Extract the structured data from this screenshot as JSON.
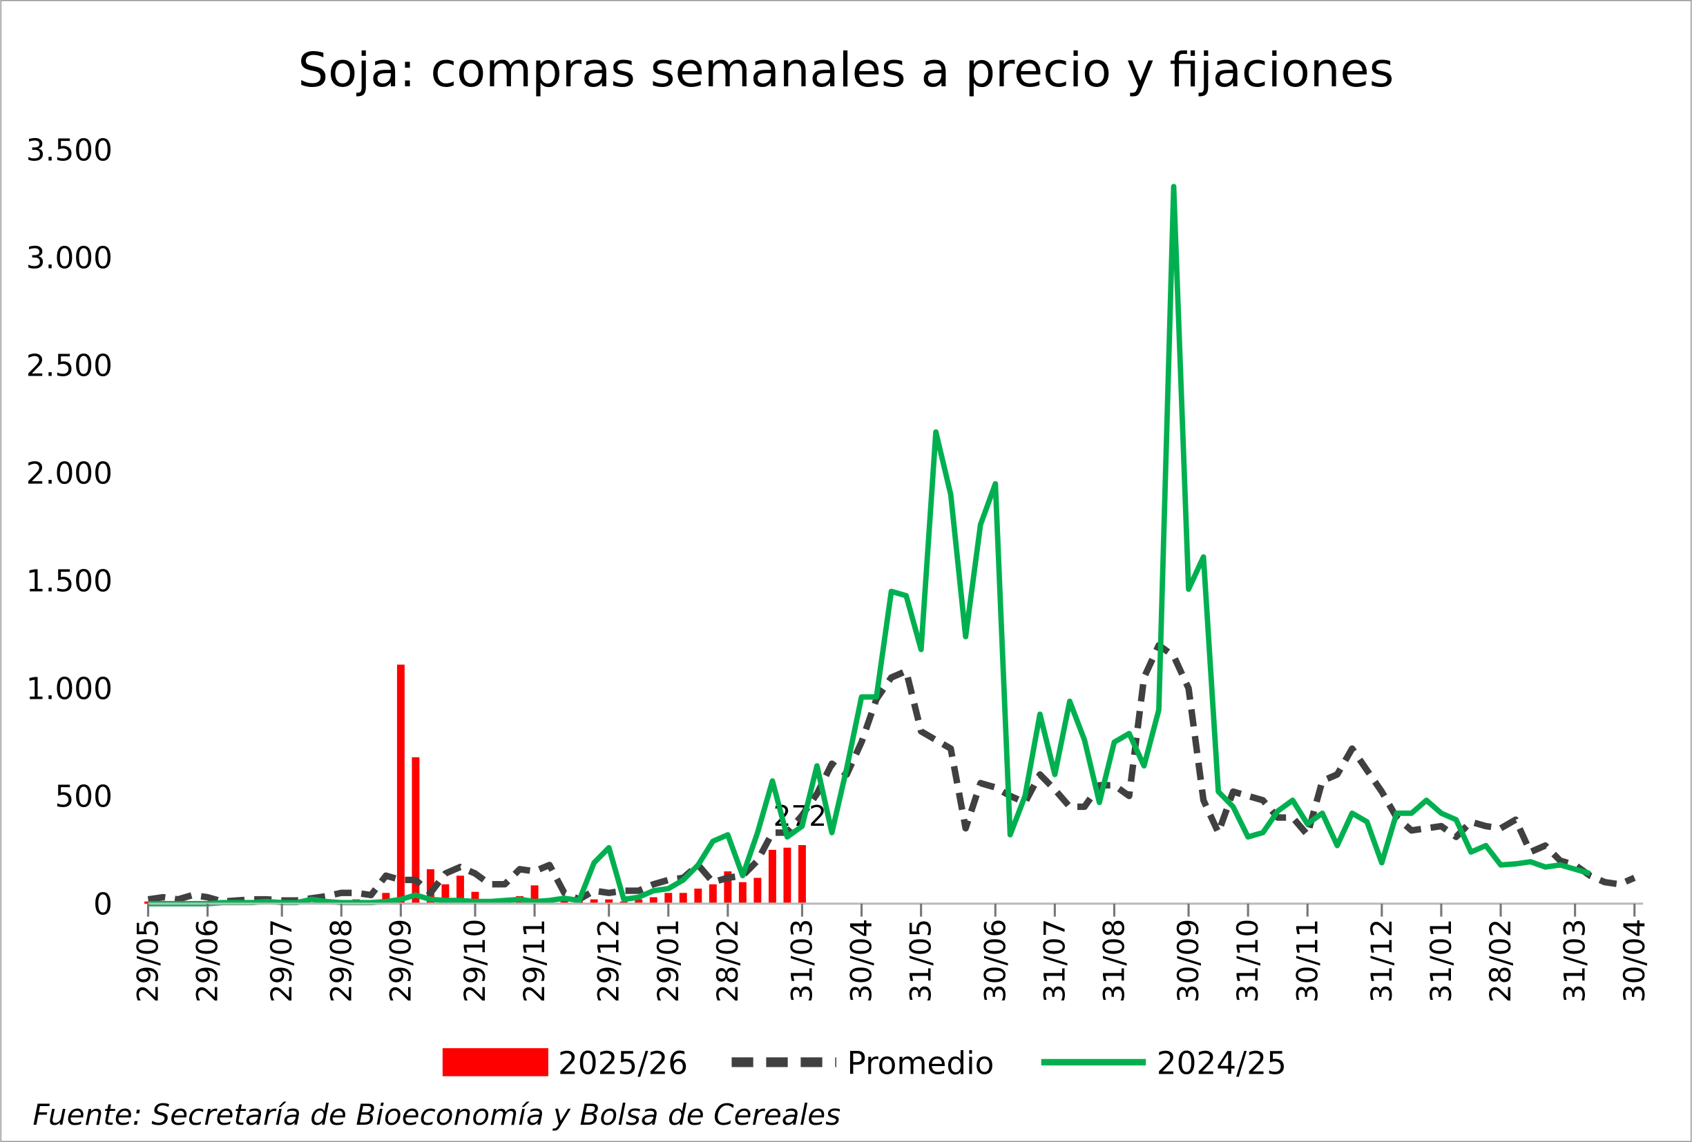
{
  "chart_data": {
    "type": "bar",
    "title": "Soja: compras semanales a precio y fijaciones",
    "source": "Fuente: Secretaría de Bioeconomía y Bolsa de Cereales",
    "categories": [
      "29/05",
      null,
      null,
      null,
      "29/06",
      null,
      null,
      null,
      null,
      "29/07",
      null,
      null,
      null,
      "29/08",
      null,
      null,
      null,
      "29/09",
      null,
      null,
      null,
      null,
      "29/10",
      null,
      null,
      null,
      "29/11",
      null,
      null,
      null,
      null,
      "29/12",
      null,
      null,
      null,
      "29/01",
      null,
      null,
      null,
      "28/02",
      null,
      null,
      null,
      null,
      "31/03",
      null,
      null,
      null,
      "30/04",
      null,
      null,
      null,
      "31/05",
      null,
      null,
      null,
      null,
      "30/06",
      null,
      null,
      null,
      "31/07",
      null,
      null,
      null,
      "31/08",
      null,
      null,
      null,
      null,
      "30/09",
      null,
      null,
      null,
      "31/10",
      null,
      null,
      null,
      "30/11",
      null,
      null,
      null,
      null,
      "31/12",
      null,
      null,
      null,
      "31/01",
      null,
      null,
      null,
      "28/02",
      null,
      null,
      null,
      null,
      "31/03",
      null,
      null,
      null,
      "30/04"
    ],
    "ylim": [
      0,
      3500
    ],
    "yticks": [
      0,
      500,
      {
        "value": 1000,
        "label": "1.000"
      },
      {
        "value": 1500,
        "label": "1.500"
      },
      {
        "value": 2000,
        "label": "2.000"
      },
      {
        "value": 2500,
        "label": "2.500"
      },
      {
        "value": 3000,
        "label": "3.000"
      },
      {
        "value": 3500,
        "label": "3.500"
      }
    ],
    "grid": false,
    "legend": "bottom",
    "series": [
      {
        "name": "2025/26",
        "type": "bar",
        "color": "#ff0000",
        "label_last": true,
        "values": [
          10,
          5,
          10,
          5,
          0,
          5,
          10,
          5,
          5,
          0,
          10,
          5,
          10,
          15,
          20,
          10,
          50,
          1110,
          680,
          160,
          90,
          130,
          55,
          20,
          20,
          35,
          85,
          25,
          15,
          10,
          20,
          20,
          10,
          20,
          30,
          50,
          50,
          70,
          90,
          150,
          100,
          120,
          250,
          260,
          272,
          null,
          null,
          null,
          null,
          null,
          null,
          null,
          null,
          null,
          null,
          null,
          null,
          null,
          null,
          null,
          null,
          null,
          null,
          null,
          null,
          null,
          null,
          null,
          null,
          null,
          null,
          null,
          null,
          null,
          null,
          null,
          null,
          null,
          null,
          null,
          null,
          null,
          null,
          null,
          null,
          null,
          null,
          null,
          null,
          null,
          null,
          null,
          null,
          null,
          null,
          null,
          null,
          null,
          null,
          null,
          null
        ]
      },
      {
        "name": "Promedio",
        "type": "line",
        "color": "#404040",
        "dash": true,
        "values": [
          20,
          30,
          20,
          40,
          30,
          10,
          15,
          20,
          20,
          15,
          15,
          25,
          35,
          50,
          50,
          40,
          130,
          110,
          110,
          50,
          140,
          170,
          140,
          90,
          90,
          160,
          150,
          180,
          50,
          20,
          60,
          50,
          60,
          60,
          90,
          110,
          120,
          180,
          100,
          120,
          130,
          200,
          330,
          330,
          410,
          510,
          650,
          600,
          750,
          950,
          1050,
          1080,
          800,
          760,
          720,
          350,
          560,
          540,
          500,
          470,
          600,
          530,
          450,
          450,
          550,
          550,
          500,
          1050,
          1200,
          1150,
          1000,
          480,
          330,
          520,
          500,
          480,
          400,
          400,
          320,
          570,
          600,
          720,
          620,
          520,
          400,
          340,
          350,
          360,
          310,
          380,
          360,
          350,
          390,
          240,
          270,
          200,
          180,
          130,
          100,
          90,
          120
        ]
      },
      {
        "name": "2024/25",
        "type": "line",
        "color": "#00b050",
        "dash": false,
        "values": [
          0,
          0,
          0,
          0,
          0,
          5,
          5,
          5,
          10,
          5,
          5,
          20,
          10,
          5,
          5,
          5,
          10,
          20,
          40,
          20,
          15,
          15,
          10,
          10,
          15,
          20,
          10,
          15,
          25,
          15,
          190,
          260,
          20,
          30,
          60,
          70,
          110,
          180,
          290,
          320,
          130,
          330,
          570,
          310,
          360,
          640,
          330,
          630,
          960,
          960,
          1450,
          1430,
          1180,
          2190,
          1900,
          1240,
          1760,
          1950,
          320,
          500,
          880,
          600,
          940,
          760,
          470,
          750,
          790,
          640,
          900,
          3330,
          1460,
          1610,
          520,
          450,
          310,
          330,
          430,
          480,
          370,
          420,
          270,
          420,
          380,
          190,
          420,
          420,
          480,
          420,
          390,
          240,
          270,
          180,
          185,
          195,
          170,
          180,
          160,
          140,
          null,
          null,
          null
        ]
      }
    ]
  }
}
